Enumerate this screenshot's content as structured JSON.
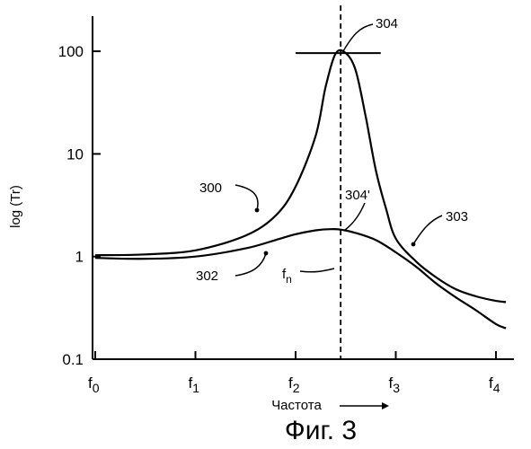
{
  "chart_data": {
    "type": "line",
    "title": "",
    "caption": "Фиг. 3",
    "xlabel": "Частота",
    "ylabel": "log (Tr)",
    "yscale": "log",
    "ylim": [
      0.1,
      200
    ],
    "xlim": [
      0,
      4.15
    ],
    "y_ticks": [
      {
        "value": 0.1,
        "label": "0.1"
      },
      {
        "value": 1,
        "label": "1"
      },
      {
        "value": 10,
        "label": "10"
      },
      {
        "value": 100,
        "label": "100"
      }
    ],
    "x_ticks": [
      {
        "value": 0,
        "label": "f",
        "sub": "0"
      },
      {
        "value": 1,
        "label": "f",
        "sub": "1"
      },
      {
        "value": 2,
        "label": "f",
        "sub": "2"
      },
      {
        "value": 3,
        "label": "f",
        "sub": "3"
      },
      {
        "value": 4,
        "label": "f",
        "sub": "4"
      }
    ],
    "grid": false,
    "series": [
      {
        "id": "300",
        "x": [
          0,
          0.5,
          1,
          1.5,
          1.8,
          2.0,
          2.2,
          2.3,
          2.4,
          2.5,
          2.6,
          2.7,
          2.8,
          2.9,
          3.0,
          3.2,
          3.4,
          3.6,
          3.8,
          4.0,
          4.1
        ],
        "y": [
          1.03,
          1.05,
          1.15,
          1.6,
          2.5,
          4.8,
          15,
          45,
          95,
          96,
          65,
          23,
          7,
          3.0,
          1.5,
          0.9,
          0.63,
          0.48,
          0.41,
          0.37,
          0.36
        ]
      },
      {
        "id": "302",
        "x": [
          0,
          0.5,
          1,
          1.5,
          1.8,
          2.0,
          2.2,
          2.35,
          2.45,
          2.6,
          2.8,
          3.0,
          3.2,
          3.4,
          3.6,
          3.8,
          4.0,
          4.1
        ],
        "y": [
          0.97,
          0.95,
          1.0,
          1.2,
          1.45,
          1.65,
          1.8,
          1.85,
          1.83,
          1.7,
          1.45,
          1.1,
          0.8,
          0.55,
          0.4,
          0.3,
          0.22,
          0.2
        ]
      }
    ],
    "reference_lines": [
      {
        "orientation": "vertical",
        "x": 2.45,
        "style": "dashed"
      },
      {
        "orientation": "horizontal",
        "y": 96,
        "x_from": 2.0,
        "x_to": 2.85,
        "style": "solid"
      }
    ],
    "annotations": [
      {
        "text": "304"
      },
      {
        "text": "304'"
      },
      {
        "text": "303"
      },
      {
        "text": "300"
      },
      {
        "text": "302"
      },
      {
        "text": "f",
        "sub": "n"
      }
    ]
  }
}
